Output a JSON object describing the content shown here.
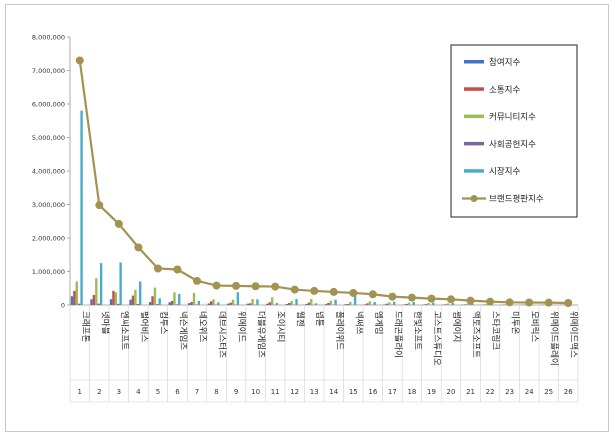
{
  "chart_data": {
    "type": "bar",
    "title": "",
    "xlabel": "",
    "ylabel": "",
    "ylim": [
      0,
      8000000
    ],
    "y_ticks": [
      "0",
      "1,000,000",
      "2,000,000",
      "3,000,000",
      "4,000,000",
      "5,000,000",
      "6,000,000",
      "7,000,000",
      "8,000,000"
    ],
    "grid": false,
    "legend_position": "top-right",
    "categories": [
      "크래프톤",
      "넷마블",
      "엔씨소프트",
      "펄어비스",
      "컴투스",
      "넥슨게임즈",
      "네오위즈",
      "데브시스터즈",
      "위메이드",
      "더블유게임즈",
      "조이시티",
      "웹젠",
      "넵튠",
      "플레이위드",
      "넥써쓰",
      "엠게임",
      "드래곤플라이",
      "한빛소프트",
      "고스트스튜디오",
      "썸에이지",
      "액토즈소프트",
      "스타코링크",
      "미투온",
      "모비릭스",
      "위메이드플레이",
      "위메이드맥스"
    ],
    "index_labels": [
      "1",
      "2",
      "3",
      "4",
      "5",
      "6",
      "7",
      "8",
      "9",
      "10",
      "11",
      "12",
      "13",
      "14",
      "15",
      "16",
      "17",
      "18",
      "19",
      "20",
      "21",
      "22",
      "23",
      "24",
      "25",
      "26"
    ],
    "series": [
      {
        "name": "참여지수",
        "color": "#4472c4",
        "kind": "bar",
        "values": [
          260000,
          170000,
          170000,
          160000,
          85000,
          80000,
          55000,
          45000,
          40000,
          40000,
          38000,
          30000,
          28000,
          25000,
          22000,
          18000,
          16000,
          14000,
          12000,
          10000,
          9000,
          8000,
          7000,
          7000,
          6000,
          5000
        ]
      },
      {
        "name": "소통지수",
        "color": "#c0504d",
        "kind": "bar",
        "values": [
          420000,
          300000,
          420000,
          280000,
          260000,
          120000,
          90000,
          110000,
          70000,
          50000,
          80000,
          60000,
          70000,
          60000,
          30000,
          50000,
          40000,
          30000,
          25000,
          20000,
          18000,
          15000,
          12000,
          10000,
          10000,
          8000
        ]
      },
      {
        "name": "커뮤니티지수",
        "color": "#9bbb59",
        "kind": "bar",
        "values": [
          700000,
          800000,
          380000,
          450000,
          520000,
          380000,
          360000,
          170000,
          160000,
          180000,
          230000,
          120000,
          180000,
          130000,
          90000,
          110000,
          80000,
          70000,
          60000,
          50000,
          40000,
          30000,
          25000,
          20000,
          20000,
          15000
        ]
      },
      {
        "name": "사회공헌지수",
        "color": "#8064a2",
        "kind": "bar",
        "values": [
          40000,
          40000,
          35000,
          30000,
          25000,
          20000,
          15000,
          12000,
          10000,
          8000,
          8000,
          6000,
          5000,
          5000,
          4000,
          4000,
          3000,
          3000,
          3000,
          2000,
          2000,
          2000,
          1000,
          1000,
          1000,
          1000
        ]
      },
      {
        "name": "시장지수",
        "color": "#4bacc6",
        "kind": "bar",
        "values": [
          5800000,
          1250000,
          1270000,
          700000,
          200000,
          330000,
          120000,
          80000,
          380000,
          170000,
          60000,
          180000,
          50000,
          160000,
          320000,
          90000,
          100000,
          90000,
          70000,
          60000,
          40000,
          30000,
          20000,
          20000,
          15000,
          10000
        ]
      },
      {
        "name": "브랜드평판지수",
        "color": "#a39352",
        "kind": "line",
        "values": [
          7300000,
          2980000,
          2420000,
          1720000,
          1090000,
          1060000,
          720000,
          580000,
          570000,
          560000,
          550000,
          460000,
          420000,
          390000,
          360000,
          320000,
          250000,
          220000,
          190000,
          170000,
          130000,
          100000,
          80000,
          75000,
          70000,
          60000
        ]
      }
    ]
  }
}
